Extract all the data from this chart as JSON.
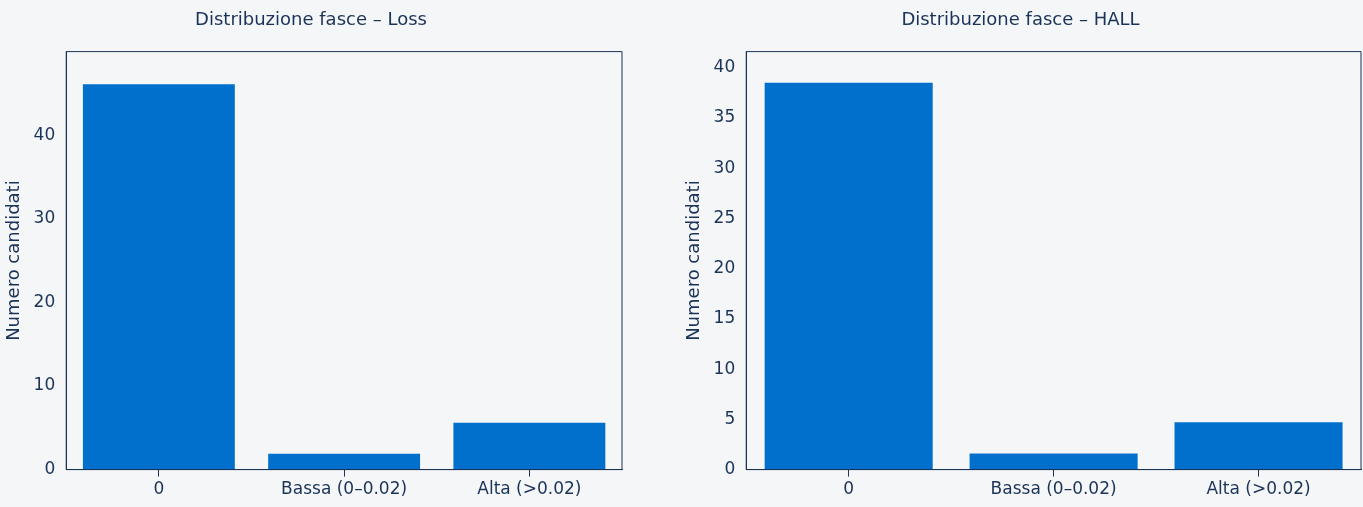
{
  "chart_data": [
    {
      "type": "bar",
      "title": "Distribuzione fasce – Loss",
      "ylabel": "Numero candidati",
      "categories": [
        "0",
        "Bassa (0–0.02)",
        "Alta (>0.02)"
      ],
      "values": [
        46.1,
        1.9,
        5.6
      ],
      "color": "#0070cc",
      "ylim": [
        0,
        50
      ],
      "yticks": [
        0,
        10,
        20,
        30,
        40
      ],
      "grid": false,
      "legend": false
    },
    {
      "type": "bar",
      "title": "Distribuzione fasce – HALL",
      "ylabel": "Numero candidati",
      "categories": [
        "0",
        "Bassa (0–0.02)",
        "Alta (>0.02)"
      ],
      "values": [
        38.5,
        1.6,
        4.7
      ],
      "color": "#0070cc",
      "ylim": [
        0,
        41.6
      ],
      "yticks": [
        0,
        5,
        10,
        15,
        20,
        25,
        30,
        35,
        40
      ],
      "grid": false,
      "legend": false
    }
  ]
}
